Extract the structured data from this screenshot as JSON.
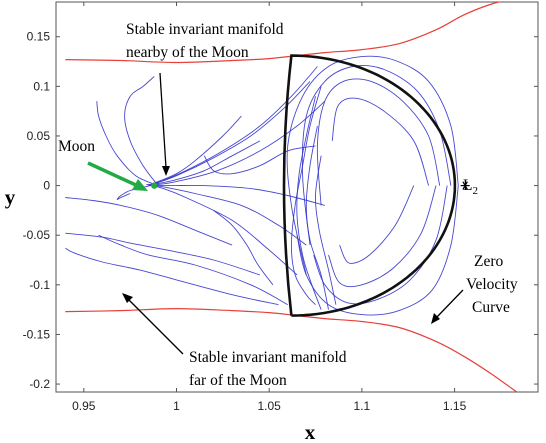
{
  "chart_data": {
    "type": "line",
    "title": "",
    "xlabel": "x",
    "ylabel": "y",
    "xlim": [
      0.935,
      1.195
    ],
    "ylim": [
      -0.208,
      0.185
    ],
    "xticks": [
      0.95,
      1,
      1.05,
      1.1,
      1.15
    ],
    "xtick_labels": [
      "0.95",
      "1",
      "1.05",
      "1.1",
      "1.15"
    ],
    "yticks": [
      0.15,
      0.1,
      0.05,
      0,
      -0.05,
      -0.1,
      -0.15,
      -0.2
    ],
    "ytick_labels": [
      "0.15",
      "0.1",
      "0.05",
      "0",
      "-0.05",
      "-0.1",
      "-0.15",
      "-0.2"
    ],
    "grid": false,
    "colors": {
      "manifold": "#3333cc",
      "zero_velocity": "#e8403a",
      "lyapunov_orbit": "#111111",
      "moon_arrow": "#22aa44",
      "moon_marker": "#22aa44"
    },
    "points": {
      "moon": {
        "x": 0.988,
        "y": 0.0
      },
      "L2": {
        "x": 1.1557,
        "y": 0.0,
        "label": "L",
        "label_sub": "2"
      }
    },
    "annotations": {
      "moon_label": "Moon",
      "stable_near_line1": "Stable invariant manifold",
      "stable_near_line2": "nearby of the Moon",
      "stable_far_line1": "Stable invariant manifold",
      "stable_far_line2": "far of the Moon",
      "zvc_line1": "Zero",
      "zvc_line2": "Velocity",
      "zvc_line3": "Curve"
    },
    "zero_velocity_curve": {
      "upper": {
        "x": [
          0.94,
          0.97,
          1.0,
          1.03,
          1.05,
          1.065,
          1.08,
          1.1,
          1.12,
          1.14,
          1.155,
          1.17,
          1.185
        ],
        "y": [
          0.127,
          0.126,
          0.124,
          0.126,
          0.128,
          0.131,
          0.134,
          0.137,
          0.143,
          0.157,
          0.172,
          0.183,
          0.19
        ]
      },
      "lower": {
        "x": [
          0.94,
          0.97,
          1.0,
          1.03,
          1.05,
          1.065,
          1.08,
          1.1,
          1.12,
          1.14,
          1.155,
          1.17,
          1.185
        ],
        "y": [
          -0.127,
          -0.126,
          -0.124,
          -0.126,
          -0.128,
          -0.131,
          -0.134,
          -0.137,
          -0.143,
          -0.157,
          -0.172,
          -0.19,
          -0.21
        ]
      }
    },
    "lyapunov_orbit": {
      "x_left": 1.058,
      "x_right": 1.152,
      "y_half_height": 0.131
    },
    "manifold_trajectories": [
      {
        "x": [
          1.152,
          1.148,
          1.136,
          1.118,
          1.1,
          1.082,
          1.068,
          1.06,
          1.062,
          1.07
        ],
        "y": [
          0.0,
          0.06,
          0.105,
          0.126,
          0.13,
          0.12,
          0.09,
          0.04,
          -0.02,
          -0.09
        ]
      },
      {
        "x": [
          1.148,
          1.142,
          1.13,
          1.112,
          1.095,
          1.08,
          1.07,
          1.068,
          1.072
        ],
        "y": [
          0.0,
          0.055,
          0.095,
          0.117,
          0.12,
          0.105,
          0.07,
          0.01,
          -0.06
        ]
      },
      {
        "x": [
          1.142,
          1.136,
          1.122,
          1.105,
          1.09,
          1.08,
          1.076,
          1.078
        ],
        "y": [
          0.0,
          0.05,
          0.085,
          0.105,
          0.105,
          0.085,
          0.04,
          -0.02
        ]
      },
      {
        "x": [
          1.136,
          1.128,
          1.112,
          1.097,
          1.087,
          1.084
        ],
        "y": [
          0.0,
          0.045,
          0.075,
          0.088,
          0.08,
          0.045
        ]
      },
      {
        "x": [
          1.152,
          1.148,
          1.138,
          1.12,
          1.1,
          1.082,
          1.07,
          1.065
        ],
        "y": [
          0.0,
          -0.06,
          -0.105,
          -0.126,
          -0.13,
          -0.12,
          -0.09,
          -0.05
        ]
      },
      {
        "x": [
          1.146,
          1.14,
          1.126,
          1.108,
          1.092,
          1.08,
          1.074
        ],
        "y": [
          0.0,
          -0.055,
          -0.095,
          -0.115,
          -0.118,
          -0.1,
          -0.07
        ]
      },
      {
        "x": [
          1.14,
          1.132,
          1.117,
          1.1,
          1.088,
          1.082
        ],
        "y": [
          0.0,
          -0.048,
          -0.083,
          -0.1,
          -0.098,
          -0.07
        ]
      },
      {
        "x": [
          1.128,
          1.118,
          1.104,
          1.093,
          1.088
        ],
        "y": [
          0.0,
          -0.04,
          -0.07,
          -0.078,
          -0.06
        ]
      },
      {
        "x": [
          1.076,
          1.062,
          1.045,
          1.025,
          1.005,
          0.99,
          0.985,
          0.99
        ],
        "y": [
          0.12,
          0.09,
          0.06,
          0.035,
          0.015,
          0.003,
          0.0,
          0.002
        ]
      },
      {
        "x": [
          1.072,
          1.058,
          1.04,
          1.02,
          1.0,
          0.988,
          0.984,
          0.99
        ],
        "y": [
          0.105,
          0.078,
          0.05,
          0.028,
          0.01,
          0.002,
          0.001,
          0.0
        ]
      },
      {
        "x": [
          1.08,
          1.065,
          1.045,
          1.022,
          1.0,
          0.99,
          0.986
        ],
        "y": [
          0.085,
          0.06,
          0.035,
          0.015,
          0.004,
          0.001,
          0.0
        ]
      },
      {
        "x": [
          1.08,
          1.06,
          1.04,
          1.015,
          0.998,
          0.99,
          0.986
        ],
        "y": [
          -0.02,
          -0.01,
          -0.003,
          0.0,
          0.0,
          0.0,
          0.0
        ]
      },
      {
        "x": [
          1.07,
          1.055,
          1.035,
          1.01,
          0.995,
          0.988,
          0.986
        ],
        "y": [
          -0.06,
          -0.04,
          -0.02,
          -0.008,
          -0.002,
          0.0,
          0.0
        ]
      },
      {
        "x": [
          1.065,
          1.05,
          1.03,
          1.005,
          0.993,
          0.987
        ],
        "y": [
          -0.09,
          -0.065,
          -0.035,
          -0.012,
          -0.003,
          0.0
        ]
      },
      {
        "x": [
          1.035,
          1.025,
          1.01,
          1.0,
          0.99,
          0.986
        ],
        "y": [
          0.07,
          0.05,
          0.025,
          0.012,
          0.004,
          0.001
        ]
      },
      {
        "x": [
          1.045,
          1.03,
          1.015,
          1.0,
          0.99,
          0.986
        ],
        "y": [
          0.045,
          0.03,
          0.015,
          0.006,
          0.002,
          0.0
        ]
      },
      {
        "x": [
          1.075,
          1.06,
          1.045,
          1.03,
          1.02,
          1.015
        ],
        "y": [
          0.04,
          0.035,
          0.02,
          0.012,
          0.015,
          0.03
        ]
      },
      {
        "x": [
          0.99,
          0.982,
          0.975,
          0.972,
          0.975,
          0.982,
          0.988
        ],
        "y": [
          0.0,
          0.02,
          0.045,
          0.07,
          0.09,
          0.1,
          0.11
        ]
      },
      {
        "x": [
          0.99,
          0.978,
          0.968,
          0.962,
          0.958,
          0.957
        ],
        "y": [
          0.0,
          0.01,
          0.03,
          0.05,
          0.07,
          0.085
        ]
      },
      {
        "x": [
          0.986,
          0.975,
          0.97,
          0.968,
          0.97,
          0.975
        ],
        "y": [
          0.0,
          -0.005,
          -0.01,
          -0.014,
          -0.012,
          -0.008
        ]
      },
      {
        "x": [
          1.03,
          1.01,
          0.99,
          0.97,
          0.955,
          0.94
        ],
        "y": [
          -0.06,
          -0.045,
          -0.03,
          -0.02,
          -0.015,
          -0.012
        ]
      },
      {
        "x": [
          1.045,
          1.02,
          0.995,
          0.975,
          0.96,
          0.94
        ],
        "y": [
          -0.09,
          -0.075,
          -0.065,
          -0.058,
          -0.052,
          -0.048
        ]
      },
      {
        "x": [
          1.055,
          1.03,
          1.0,
          0.98,
          0.96,
          0.945,
          0.94
        ],
        "y": [
          -0.12,
          -0.11,
          -0.095,
          -0.085,
          -0.077,
          -0.068,
          -0.063
        ]
      },
      {
        "x": [
          1.06,
          1.04,
          1.01,
          0.985,
          0.97,
          0.958
        ],
        "y": [
          -0.12,
          -0.1,
          -0.08,
          -0.07,
          -0.06,
          -0.05
        ]
      },
      {
        "x": [
          1.075,
          1.07,
          1.064,
          1.062,
          1.064,
          1.068,
          1.072,
          1.078
        ],
        "y": [
          -0.12,
          -0.11,
          -0.09,
          -0.06,
          -0.02,
          0.02,
          0.06,
          0.1
        ]
      },
      {
        "x": [
          1.078,
          1.073,
          1.068,
          1.065,
          1.066,
          1.07,
          1.075
        ],
        "y": [
          -0.125,
          -0.1,
          -0.07,
          -0.03,
          0.01,
          0.05,
          0.09
        ]
      },
      {
        "x": [
          1.082,
          1.078,
          1.072,
          1.07,
          1.072,
          1.076
        ],
        "y": [
          -0.125,
          -0.09,
          -0.055,
          -0.02,
          0.02,
          0.06
        ]
      },
      {
        "x": [
          1.086,
          1.082,
          1.077,
          1.075,
          1.078
        ],
        "y": [
          -0.12,
          -0.085,
          -0.045,
          -0.01,
          0.03
        ]
      },
      {
        "x": [
          1.052,
          1.044,
          1.038,
          1.03,
          1.02
        ],
        "y": [
          -0.1,
          -0.08,
          -0.06,
          -0.04,
          -0.025
        ]
      }
    ]
  }
}
